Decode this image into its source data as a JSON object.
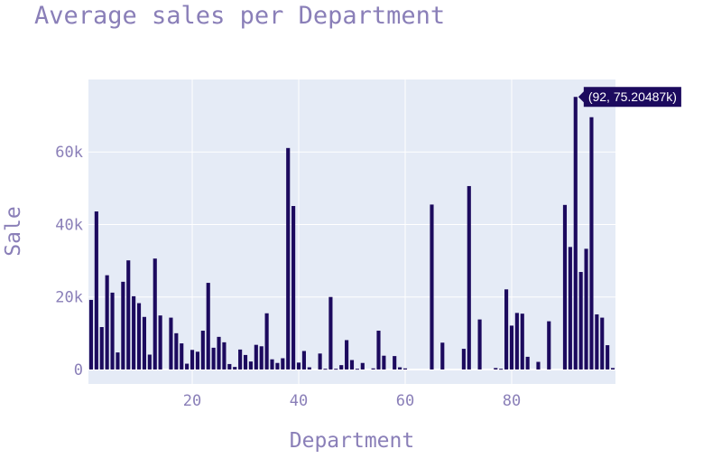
{
  "chart_data": {
    "type": "bar",
    "title": "Average sales per Department",
    "xlabel": "Department",
    "ylabel": "Sale",
    "xlim": [
      0.5,
      99.5
    ],
    "ylim": [
      -4000,
      80000
    ],
    "x_ticks": [
      20,
      40,
      60,
      80
    ],
    "x_tick_labels": [
      "20",
      "40",
      "60",
      "80"
    ],
    "y_ticks": [
      0,
      20000,
      40000,
      60000
    ],
    "y_tick_labels": [
      "0",
      "20k",
      "40k",
      "60k"
    ],
    "grid": true,
    "bar_color": "#1c0a5e",
    "plot_background": "#e5ebf6",
    "hover": {
      "x": 92,
      "y": 75204.87,
      "label": "(92, 75.20487k)"
    },
    "x": [
      1,
      2,
      3,
      4,
      5,
      6,
      7,
      8,
      9,
      10,
      11,
      12,
      13,
      14,
      16,
      17,
      18,
      19,
      20,
      21,
      22,
      23,
      24,
      25,
      26,
      27,
      28,
      29,
      30,
      31,
      32,
      33,
      34,
      35,
      36,
      37,
      38,
      39,
      40,
      41,
      42,
      44,
      45,
      46,
      47,
      48,
      49,
      50,
      51,
      52,
      54,
      55,
      56,
      58,
      59,
      60,
      65,
      67,
      71,
      72,
      74,
      77,
      78,
      79,
      80,
      81,
      82,
      83,
      85,
      87,
      90,
      91,
      92,
      93,
      94,
      95,
      96,
      97,
      98,
      99
    ],
    "values": [
      19200,
      43600,
      11700,
      26000,
      21200,
      4700,
      24200,
      30100,
      20200,
      18300,
      14500,
      4100,
      30600,
      14900,
      14300,
      10000,
      7200,
      1600,
      5400,
      4900,
      10700,
      23900,
      6000,
      9000,
      7500,
      1500,
      700,
      5500,
      4000,
      2200,
      6800,
      6400,
      15500,
      2800,
      1800,
      3100,
      61100,
      45100,
      1900,
      5100,
      600,
      4400,
      200,
      20000,
      200,
      1200,
      8100,
      2600,
      200,
      1800,
      300,
      10700,
      3800,
      3700,
      600,
      300,
      45500,
      7400,
      5700,
      50600,
      13800,
      400,
      200,
      22100,
      12100,
      15600,
      15400,
      3500,
      2100,
      13300,
      45400,
      33800,
      75204.87,
      26900,
      33300,
      69600,
      15200,
      14300,
      6700,
      400
    ]
  }
}
